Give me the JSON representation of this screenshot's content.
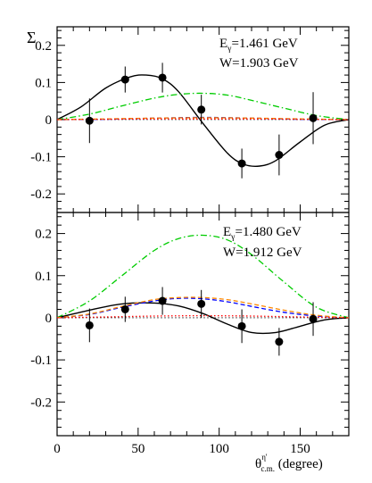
{
  "chart_data": [
    {
      "type": "scatter",
      "ylabel": "Σ",
      "annotations": [
        {
          "base": "E",
          "sub": "γ",
          "rest": "=1.461 GeV"
        },
        {
          "base": "W=1.903 GeV",
          "sub": "",
          "rest": ""
        }
      ],
      "xlim": [
        0,
        180
      ],
      "ylim": [
        -0.25,
        0.25
      ],
      "yticks": [
        -0.2,
        -0.1,
        0,
        0.1,
        0.2
      ],
      "ytick_labels": [
        "-0.2",
        "-0.1",
        "0",
        "0.1",
        "0.2"
      ],
      "points": [
        {
          "x": 20,
          "y": -0.003,
          "err": 0.06
        },
        {
          "x": 42,
          "y": 0.108,
          "err": 0.035
        },
        {
          "x": 65,
          "y": 0.113,
          "err": 0.04
        },
        {
          "x": 89,
          "y": 0.027,
          "err": 0.04
        },
        {
          "x": 114,
          "y": -0.118,
          "err": 0.04
        },
        {
          "x": 137,
          "y": -0.095,
          "err": 0.055
        },
        {
          "x": 158,
          "y": 0.004,
          "err": 0.07
        }
      ],
      "curves": [
        {
          "color": "#000000",
          "style": "solid",
          "x": [
            0,
            15,
            30,
            45,
            55,
            65,
            75,
            90,
            105,
            115,
            125,
            135,
            150,
            165,
            180
          ],
          "y": [
            0,
            0.035,
            0.085,
            0.115,
            0.12,
            0.11,
            0.075,
            -0.01,
            -0.09,
            -0.12,
            -0.125,
            -0.11,
            -0.06,
            -0.015,
            0
          ]
        },
        {
          "color": "#00cc00",
          "style": "dashdot",
          "x": [
            0,
            20,
            40,
            60,
            75,
            90,
            105,
            120,
            140,
            160,
            180
          ],
          "y": [
            0,
            0.015,
            0.037,
            0.058,
            0.068,
            0.071,
            0.066,
            0.052,
            0.031,
            0.011,
            0
          ]
        },
        {
          "color": "#0000ff",
          "style": "dashed",
          "x": [
            0,
            30,
            60,
            90,
            120,
            150,
            180
          ],
          "y": [
            0,
            0.001,
            0.004,
            0.006,
            0.004,
            0.001,
            0
          ]
        },
        {
          "color": "#ff8800",
          "style": "dashed",
          "x": [
            0,
            30,
            60,
            90,
            120,
            150,
            180
          ],
          "y": [
            0,
            0.002,
            0.004,
            0.005,
            0.004,
            0.002,
            0
          ]
        },
        {
          "color": "#ff0000",
          "style": "dotted",
          "x": [
            0,
            30,
            60,
            90,
            120,
            150,
            180
          ],
          "y": [
            0,
            0.001,
            0.002,
            0.002,
            0.002,
            0.001,
            0
          ]
        }
      ]
    },
    {
      "type": "scatter",
      "annotations": [
        {
          "base": "E",
          "sub": "γ",
          "rest": "=1.480 GeV"
        },
        {
          "base": "W=1.912 GeV",
          "sub": "",
          "rest": ""
        }
      ],
      "xlim": [
        0,
        180
      ],
      "ylim": [
        -0.28,
        0.25
      ],
      "yticks": [
        -0.2,
        -0.1,
        0,
        0.1,
        0.2
      ],
      "ytick_labels": [
        "-0.2",
        "-0.1",
        "0",
        "0.1",
        "0.2"
      ],
      "xticks": [
        0,
        50,
        100,
        150
      ],
      "xtick_labels": [
        "0",
        "50",
        "100",
        "150"
      ],
      "xlabel": {
        "base": "θ",
        "sub": "c.m.",
        "sup": "η'",
        "rest": " (degree)"
      },
      "points": [
        {
          "x": 20,
          "y": -0.018,
          "err": 0.04
        },
        {
          "x": 42,
          "y": 0.02,
          "err": 0.03
        },
        {
          "x": 65,
          "y": 0.04,
          "err": 0.033
        },
        {
          "x": 89,
          "y": 0.033,
          "err": 0.033
        },
        {
          "x": 114,
          "y": -0.02,
          "err": 0.04
        },
        {
          "x": 137,
          "y": -0.057,
          "err": 0.033
        },
        {
          "x": 158,
          "y": -0.003,
          "err": 0.04
        }
      ],
      "curves": [
        {
          "color": "#00cc00",
          "style": "dashdot",
          "x": [
            0,
            20,
            40,
            60,
            75,
            90,
            105,
            120,
            140,
            160,
            180
          ],
          "y": [
            0,
            0.04,
            0.1,
            0.16,
            0.188,
            0.196,
            0.185,
            0.15,
            0.085,
            0.025,
            0
          ]
        },
        {
          "color": "#000000",
          "style": "solid",
          "x": [
            0,
            20,
            40,
            60,
            75,
            90,
            105,
            120,
            135,
            150,
            165,
            180
          ],
          "y": [
            0,
            0.018,
            0.033,
            0.035,
            0.028,
            0.01,
            -0.015,
            -0.035,
            -0.035,
            -0.02,
            -0.005,
            0
          ]
        },
        {
          "color": "#0000ff",
          "style": "dashed",
          "x": [
            0,
            20,
            40,
            60,
            75,
            90,
            105,
            120,
            140,
            160,
            180
          ],
          "y": [
            0,
            0.008,
            0.025,
            0.04,
            0.046,
            0.045,
            0.038,
            0.027,
            0.013,
            0.004,
            0
          ]
        },
        {
          "color": "#ff8800",
          "style": "dashed",
          "x": [
            0,
            20,
            40,
            60,
            75,
            90,
            105,
            120,
            140,
            160,
            180
          ],
          "y": [
            0,
            0.009,
            0.027,
            0.043,
            0.048,
            0.048,
            0.043,
            0.033,
            0.018,
            0.006,
            0
          ]
        },
        {
          "color": "#ff0000",
          "style": "dotted",
          "x": [
            0,
            30,
            60,
            90,
            120,
            150,
            180
          ],
          "y": [
            0,
            0.002,
            0.004,
            0.005,
            0.004,
            0.002,
            0
          ]
        }
      ]
    }
  ]
}
